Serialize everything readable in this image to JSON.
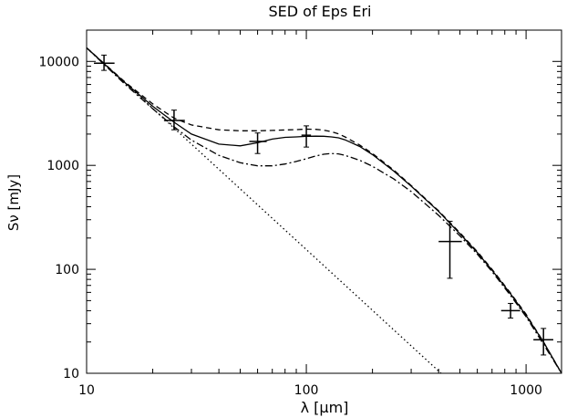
{
  "chart_data": {
    "type": "line",
    "title": "SED of Eps Eri",
    "xlabel": "λ [μm]",
    "ylabel": "Sν [mJy]",
    "xscale": "log",
    "yscale": "log",
    "xlim": [
      10,
      1450
    ],
    "ylim": [
      10,
      20000
    ],
    "x_ticks": [
      10,
      100,
      1000
    ],
    "x_tick_labels": [
      "10",
      "100",
      "1000"
    ],
    "y_ticks": [
      10,
      100,
      1000,
      10000
    ],
    "y_tick_labels": [
      "10",
      "100",
      "1000",
      "10000"
    ],
    "grid": false,
    "legend": "none",
    "series": [
      {
        "style": "solid",
        "x": [
          10,
          15,
          20,
          25,
          30,
          40,
          50,
          60,
          70,
          80,
          90,
          100,
          110,
          120,
          130,
          140,
          150,
          175,
          200,
          250,
          300,
          400,
          500,
          600,
          700,
          850,
          1000,
          1200,
          1450
        ],
        "y": [
          13500,
          6200,
          3700,
          2600,
          2000,
          1600,
          1540,
          1650,
          1790,
          1860,
          1880,
          1900,
          1910,
          1905,
          1880,
          1840,
          1760,
          1520,
          1270,
          880,
          630,
          360,
          220,
          145,
          98,
          58,
          36,
          20,
          10
        ]
      },
      {
        "style": "dashed",
        "x": [
          10,
          15,
          20,
          25,
          30,
          40,
          50,
          60,
          70,
          80,
          90,
          100,
          110,
          120,
          130,
          140,
          150,
          175,
          200,
          250,
          300,
          400,
          500,
          600,
          700,
          850,
          1000,
          1200,
          1450
        ],
        "y": [
          13500,
          6300,
          3900,
          2850,
          2450,
          2200,
          2150,
          2150,
          2170,
          2190,
          2210,
          2230,
          2220,
          2180,
          2110,
          2010,
          1880,
          1570,
          1300,
          900,
          640,
          365,
          225,
          148,
          100,
          59,
          37,
          20,
          10
        ]
      },
      {
        "style": "dash-dot",
        "x": [
          10,
          15,
          20,
          25,
          30,
          40,
          50,
          60,
          70,
          80,
          90,
          100,
          110,
          120,
          130,
          140,
          150,
          175,
          200,
          250,
          300,
          400,
          500,
          600,
          700,
          850,
          1000,
          1200,
          1450
        ],
        "y": [
          13500,
          6000,
          3500,
          2350,
          1750,
          1250,
          1060,
          990,
          990,
          1030,
          1090,
          1160,
          1230,
          1280,
          1300,
          1290,
          1250,
          1120,
          980,
          740,
          560,
          330,
          210,
          140,
          95,
          56,
          35,
          19,
          10
        ]
      },
      {
        "style": "dotted",
        "x": [
          10,
          410
        ],
        "y": [
          13500,
          10
        ]
      }
    ],
    "observations": [
      {
        "x": 12,
        "y": 9600,
        "x_lo": 10.8,
        "x_hi": 13.4,
        "y_lo": 8200,
        "y_hi": 11500
      },
      {
        "x": 25,
        "y": 2700,
        "x_lo": 22.5,
        "x_hi": 28,
        "y_lo": 2200,
        "y_hi": 3400
      },
      {
        "x": 60,
        "y": 1700,
        "x_lo": 55,
        "x_hi": 66,
        "y_lo": 1300,
        "y_hi": 2050
      },
      {
        "x": 100,
        "y": 1950,
        "x_lo": 95,
        "x_hi": 105,
        "y_lo": 1500,
        "y_hi": 2400
      },
      {
        "x": 450,
        "y": 185,
        "x_lo": 400,
        "x_hi": 510,
        "y_lo": 82,
        "y_hi": 290
      },
      {
        "x": 850,
        "y": 40,
        "x_lo": 770,
        "x_hi": 940,
        "y_lo": 34,
        "y_hi": 47
      },
      {
        "x": 1200,
        "y": 21,
        "x_lo": 1080,
        "x_hi": 1330,
        "y_lo": 15,
        "y_hi": 27
      }
    ]
  }
}
